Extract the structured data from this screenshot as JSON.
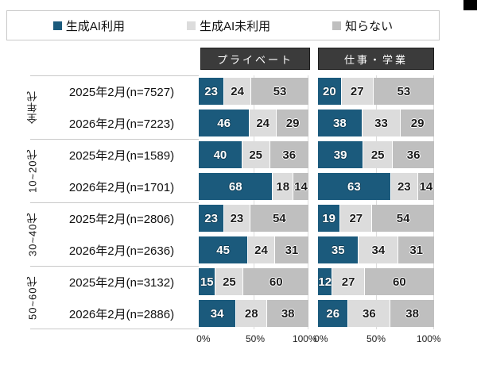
{
  "legend": {
    "items": [
      {
        "label": "生成AI利用",
        "color": "#1b5a7c"
      },
      {
        "label": "生成AI未利用",
        "color": "#dcdcdc"
      },
      {
        "label": "知らない",
        "color": "#bfbfbf"
      }
    ]
  },
  "column_headers": [
    {
      "label": "プライベート"
    },
    {
      "label": "仕事・学業"
    }
  ],
  "chart_data": {
    "type": "bar",
    "orientation": "horizontal",
    "stacked": true,
    "unit": "%",
    "xlim": [
      0,
      100
    ],
    "x_ticks": [
      "0%",
      "50%",
      "100%"
    ],
    "panels": [
      "プライベート",
      "仕事・学業"
    ],
    "series_names": [
      "生成AI利用",
      "生成AI未利用",
      "知らない"
    ],
    "series_colors": [
      "#1b5a7c",
      "#dcdcdc",
      "#bfbfbf"
    ],
    "groups": [
      {
        "group": "全年代",
        "rows": [
          {
            "label": "2025年2月(n=7527)",
            "private": [
              23,
              24,
              53
            ],
            "work": [
              20,
              27,
              53
            ]
          },
          {
            "label": "2026年2月(n=7223)",
            "private": [
              46,
              24,
              29
            ],
            "work": [
              38,
              33,
              29
            ]
          }
        ]
      },
      {
        "group": "10~20代",
        "rows": [
          {
            "label": "2025年2月(n=1589)",
            "private": [
              40,
              25,
              36
            ],
            "work": [
              39,
              25,
              36
            ]
          },
          {
            "label": "2026年2月(n=1701)",
            "private": [
              68,
              18,
              14
            ],
            "work": [
              63,
              23,
              14
            ]
          }
        ]
      },
      {
        "group": "30~40代",
        "rows": [
          {
            "label": "2025年2月(n=2806)",
            "private": [
              23,
              23,
              54
            ],
            "work": [
              19,
              27,
              54
            ]
          },
          {
            "label": "2026年2月(n=2636)",
            "private": [
              45,
              24,
              31
            ],
            "work": [
              35,
              34,
              31
            ]
          }
        ]
      },
      {
        "group": "50~60代",
        "rows": [
          {
            "label": "2025年2月(n=3132)",
            "private": [
              15,
              25,
              60
            ],
            "work": [
              12,
              27,
              60
            ]
          },
          {
            "label": "2026年2月(n=2886)",
            "private": [
              34,
              28,
              38
            ],
            "work": [
              26,
              36,
              38
            ]
          }
        ]
      }
    ]
  }
}
